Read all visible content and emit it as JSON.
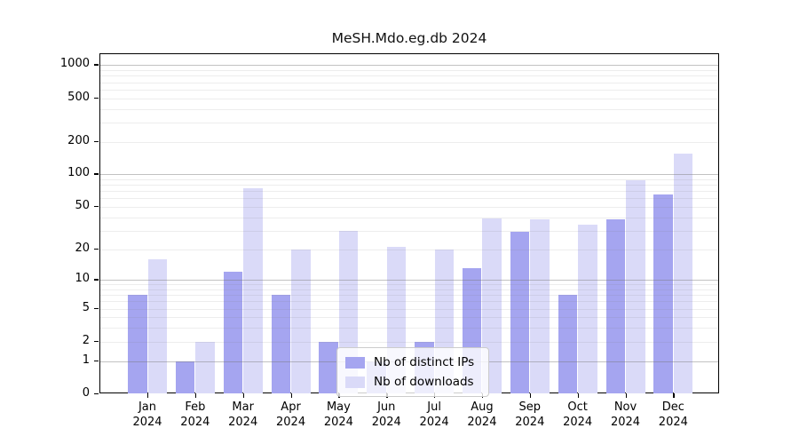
{
  "title": "MeSH.Mdo.eg.db 2024",
  "chart_data": {
    "type": "bar",
    "title": "MeSH.Mdo.eg.db 2024",
    "categories": [
      "Jan",
      "Feb",
      "Mar",
      "Apr",
      "May",
      "Jun",
      "Jul",
      "Aug",
      "Sep",
      "Oct",
      "Nov",
      "Dec"
    ],
    "x_year_label": "2024",
    "series": [
      {
        "name": "Nb of distinct IPs",
        "color": "#a5a5f0",
        "values": [
          7,
          1,
          12,
          7,
          2,
          1,
          2,
          13,
          29,
          7,
          38,
          65
        ]
      },
      {
        "name": "Nb of downloads",
        "color": "#dadaf8",
        "values": [
          16,
          2,
          75,
          20,
          30,
          21,
          20,
          39,
          38,
          34,
          88,
          155
        ]
      }
    ],
    "xlabel": "",
    "ylabel": "",
    "y_scale": "log10(value+1)",
    "ylim": [
      0,
      1270
    ],
    "y_ticks": [
      0,
      1,
      2,
      5,
      10,
      20,
      50,
      100,
      200,
      500,
      1000
    ],
    "y_major_gridlines": [
      1,
      10,
      100,
      1000
    ],
    "y_minor_gridlines": [
      2,
      3,
      4,
      5,
      6,
      7,
      8,
      9,
      20,
      30,
      40,
      50,
      60,
      70,
      80,
      90,
      200,
      300,
      400,
      500,
      600,
      700,
      800,
      900
    ],
    "grid": true,
    "legend_position": "bottom-center",
    "colors": {
      "grid_major": "#787878",
      "grid_minor": "#828282",
      "axis": "#000000",
      "background": "#ffffff"
    }
  }
}
